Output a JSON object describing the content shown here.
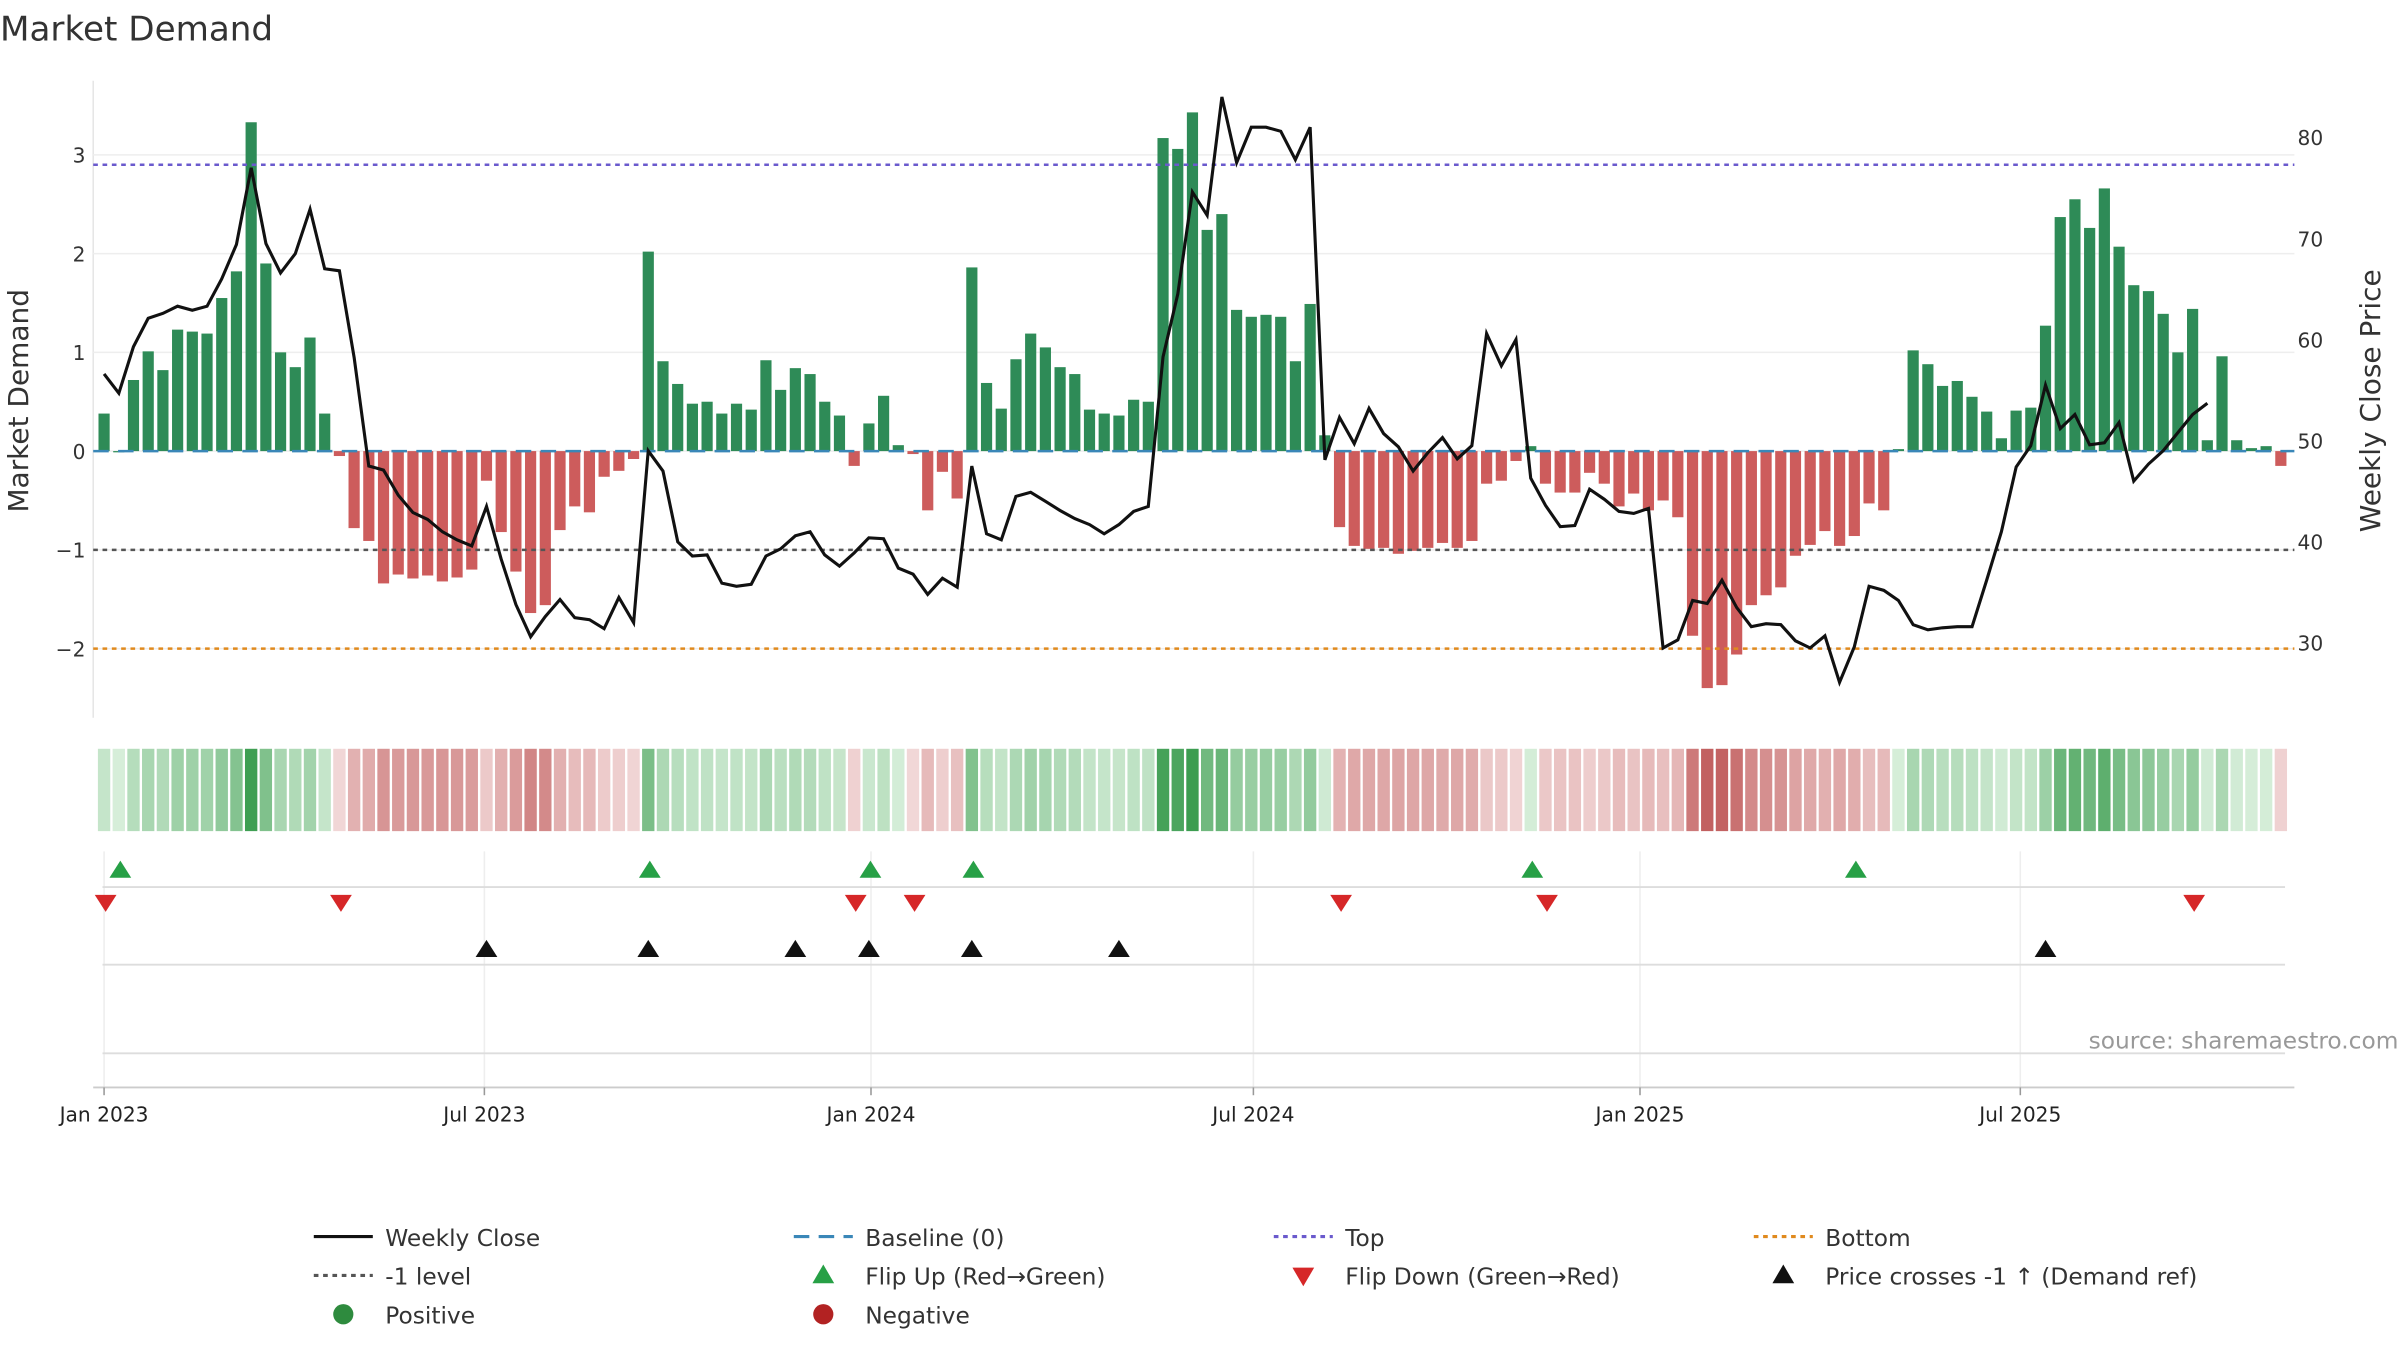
{
  "chart_data": {
    "type": "bar",
    "title": "Market Demand",
    "ylabel_left": "Market Demand",
    "ylabel_right": "Weekly Close Price",
    "ylim_left": [
      -2.7,
      3.75
    ],
    "ylim_right": [
      22.6,
      85.6
    ],
    "yticks_left": [
      {
        "v": 3,
        "label": "3"
      },
      {
        "v": 2,
        "label": "2"
      },
      {
        "v": 1,
        "label": "1"
      },
      {
        "v": 0,
        "label": "0"
      },
      {
        "v": -1,
        "label": "−1"
      },
      {
        "v": -2,
        "label": "−2"
      }
    ],
    "yticks_right": [
      {
        "v": 80,
        "label": "80"
      },
      {
        "v": 70,
        "label": "70"
      },
      {
        "v": 60,
        "label": "60"
      },
      {
        "v": 50,
        "label": "50"
      },
      {
        "v": 40,
        "label": "40"
      },
      {
        "v": 30,
        "label": "30"
      }
    ],
    "x_start": "2023-01-01",
    "x_step_days": 7,
    "x_ticks": [
      {
        "date": "2023-01-01",
        "label": "Jan 2023"
      },
      {
        "date": "2023-07-01",
        "label": "Jul 2023"
      },
      {
        "date": "2024-01-01",
        "label": "Jan 2024"
      },
      {
        "date": "2024-07-01",
        "label": "Jul 2024"
      },
      {
        "date": "2025-01-01",
        "label": "Jan 2025"
      },
      {
        "date": "2025-07-01",
        "label": "Jul 2025"
      }
    ],
    "demand": [
      0.38,
      0.0,
      0.72,
      1.01,
      0.82,
      1.23,
      1.21,
      1.19,
      1.55,
      1.82,
      3.33,
      1.9,
      1.0,
      0.85,
      1.15,
      0.38,
      -0.05,
      -0.78,
      -0.91,
      -1.34,
      -1.25,
      -1.29,
      -1.26,
      -1.32,
      -1.28,
      -1.2,
      -0.3,
      -0.82,
      -1.22,
      -1.64,
      -1.56,
      -0.8,
      -0.56,
      -0.62,
      -0.26,
      -0.2,
      -0.08,
      2.02,
      0.91,
      0.68,
      0.48,
      0.5,
      0.38,
      0.48,
      0.42,
      0.92,
      0.62,
      0.84,
      0.78,
      0.5,
      0.36,
      -0.15,
      0.28,
      0.56,
      0.06,
      -0.03,
      -0.6,
      -0.21,
      -0.48,
      1.86,
      0.69,
      0.43,
      0.93,
      1.19,
      1.05,
      0.85,
      0.78,
      0.42,
      0.38,
      0.36,
      0.52,
      0.5,
      3.17,
      3.06,
      3.43,
      2.24,
      2.4,
      1.43,
      1.36,
      1.38,
      1.36,
      0.91,
      1.49,
      0.16,
      -0.77,
      -0.96,
      -0.99,
      -0.98,
      -1.04,
      -1.01,
      -0.98,
      -0.93,
      -0.98,
      -0.91,
      -0.33,
      -0.3,
      -0.1,
      0.05,
      -0.33,
      -0.42,
      -0.42,
      -0.22,
      -0.33,
      -0.56,
      -0.43,
      -0.6,
      -0.5,
      -0.67,
      -1.87,
      -2.4,
      -2.37,
      -2.06,
      -1.56,
      -1.46,
      -1.38,
      -1.06,
      -0.95,
      -0.81,
      -0.96,
      -0.86,
      -0.53,
      -0.6,
      0.02,
      1.02,
      0.88,
      0.66,
      0.71,
      0.55,
      0.4,
      0.13,
      0.41,
      0.44,
      1.27,
      2.37,
      2.55,
      2.26,
      2.66,
      2.07,
      1.68,
      1.62,
      1.39,
      1.0,
      1.44,
      0.11,
      0.96,
      0.11,
      0.03,
      0.05,
      -0.15
    ],
    "close": [
      56.6,
      54.7,
      59.3,
      62.1,
      62.6,
      63.3,
      62.9,
      63.3,
      66.0,
      69.4,
      77.0,
      69.5,
      66.6,
      68.5,
      72.9,
      67.0,
      66.8,
      58.2,
      47.5,
      47.1,
      44.6,
      42.9,
      42.2,
      41.0,
      40.2,
      39.6,
      43.5,
      38.3,
      33.8,
      30.6,
      32.6,
      34.3,
      32.5,
      32.3,
      31.4,
      34.5,
      32.0,
      49.0,
      47.0,
      40.0,
      38.6,
      38.7,
      35.9,
      35.6,
      35.8,
      38.6,
      39.3,
      40.6,
      41.0,
      38.7,
      37.6,
      38.9,
      40.4,
      40.3,
      37.4,
      36.8,
      34.8,
      36.4,
      35.5,
      47.5,
      40.8,
      40.2,
      44.5,
      44.9,
      44.0,
      43.1,
      42.3,
      41.7,
      40.8,
      41.7,
      43.0,
      43.5,
      58.3,
      64.5,
      74.6,
      72.3,
      84.0,
      77.5,
      81.0,
      81.0,
      80.6,
      77.8,
      81.0,
      48.1,
      52.3,
      49.7,
      53.2,
      50.7,
      49.4,
      47.0,
      48.8,
      50.3,
      48.2,
      49.5,
      60.6,
      57.4,
      60.0,
      46.3,
      43.6,
      41.5,
      41.6,
      45.2,
      44.2,
      43.0,
      42.8,
      43.3,
      29.5,
      30.3,
      34.2,
      33.9,
      36.2,
      33.5,
      31.6,
      31.9,
      31.8,
      30.2,
      29.5,
      30.7,
      26.1,
      29.6,
      35.6,
      35.2,
      34.2,
      31.8,
      31.3,
      31.5,
      31.6,
      31.6,
      36.2,
      41.0,
      47.4,
      49.5,
      55.5,
      51.2,
      52.6,
      49.6,
      49.8,
      51.8,
      46.0,
      47.7,
      49.0,
      50.8,
      52.6,
      53.7
    ],
    "thresholds": {
      "top": 2.9,
      "minus_one": -1.0,
      "bottom": -2.0,
      "baseline": 0
    },
    "flip_up_idx": [
      1,
      37,
      52,
      59,
      97,
      119
    ],
    "flip_down_idx": [
      0,
      16,
      51,
      55,
      84,
      98,
      142
    ],
    "price_cross_idx": [
      26,
      37,
      47,
      52,
      59,
      69,
      132
    ],
    "legend": [
      {
        "label": "Weekly Close",
        "kind": "line",
        "color": "#111111",
        "dash": ""
      },
      {
        "label": "Baseline (0)",
        "kind": "line",
        "color": "#3a87b8",
        "dash": "10 6"
      },
      {
        "label": "Top",
        "kind": "line",
        "color": "#6a5acd",
        "dash": "3 3"
      },
      {
        "label": "Bottom",
        "kind": "line",
        "color": "#e08a1e",
        "dash": "3 3"
      },
      {
        "label": "-1 level",
        "kind": "line",
        "color": "#555555",
        "dash": "3 3"
      },
      {
        "label": "Flip Up (Red→Green)",
        "kind": "tri-up",
        "color": "#27a046"
      },
      {
        "label": "Flip Down (Green→Red)",
        "kind": "tri-down",
        "color": "#d62728"
      },
      {
        "label": "Price crosses -1 ↑ (Demand ref)",
        "kind": "tri-up",
        "color": "#111111"
      },
      {
        "label": "Positive",
        "kind": "dot",
        "color": "#2e8b3e"
      },
      {
        "label": "Negative",
        "kind": "dot",
        "color": "#b22222"
      }
    ],
    "colors": {
      "positive": "#2e8b57",
      "negative": "#cd5c5c"
    },
    "source": "source: sharemaestro.com"
  }
}
